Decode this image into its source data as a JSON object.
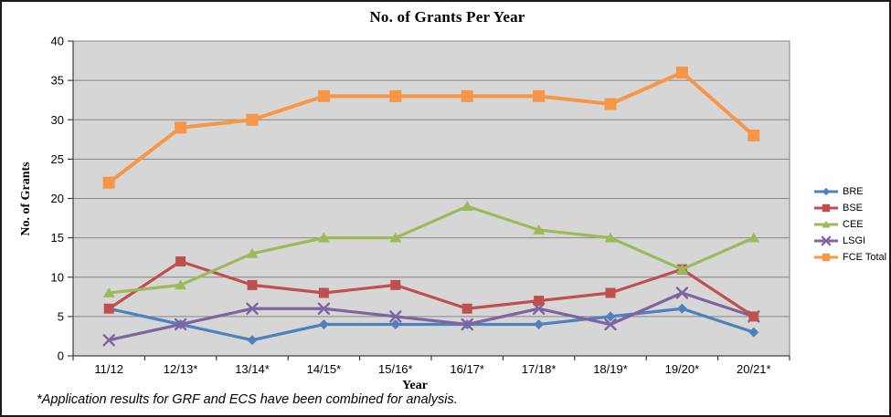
{
  "chart_data": {
    "type": "line",
    "title": "No. of Grants Per Year",
    "xlabel": "Year",
    "ylabel": "No. of Grants",
    "categories": [
      "11/12",
      "12/13*",
      "13/14*",
      "14/15*",
      "15/16*",
      "16/17*",
      "17/18*",
      "18/19*",
      "19/20*",
      "20/21*"
    ],
    "series": [
      {
        "name": "BRE",
        "color": "#4F81BD",
        "marker": "diamond",
        "values": [
          6,
          4,
          2,
          4,
          4,
          4,
          4,
          5,
          6,
          3
        ],
        "line_width": 3.2,
        "marker_size": 5.5
      },
      {
        "name": "BSE",
        "color": "#C0504D",
        "marker": "square",
        "values": [
          6,
          12,
          9,
          8,
          9,
          6,
          7,
          8,
          11,
          5
        ],
        "line_width": 3.2,
        "marker_size": 5.5
      },
      {
        "name": "CEE",
        "color": "#9BBB59",
        "marker": "triangle",
        "values": [
          8,
          9,
          13,
          15,
          15,
          19,
          16,
          15,
          11,
          15
        ],
        "line_width": 3.2,
        "marker_size": 6
      },
      {
        "name": "LSGI",
        "color": "#8064A2",
        "marker": "x",
        "values": [
          2,
          4,
          6,
          6,
          5,
          4,
          6,
          4,
          8,
          5
        ],
        "line_width": 3.2,
        "marker_size": 5.5
      },
      {
        "name": "FCE Total",
        "color": "#F79646",
        "marker": "square",
        "values": [
          22,
          29,
          30,
          33,
          33,
          33,
          33,
          32,
          36,
          28
        ],
        "line_width": 4,
        "marker_size": 6.5
      }
    ],
    "draw_order": [
      0,
      3,
      1,
      2,
      4
    ],
    "ylim": [
      0,
      40
    ],
    "y_ticks": [
      0,
      5,
      10,
      15,
      20,
      25,
      30,
      35,
      40
    ],
    "grid": true,
    "legend_position": "right",
    "plot_bg": "#D6D6D6",
    "grid_color": "#878787",
    "axis_color": "#404040",
    "plot_border_color": "#808080"
  },
  "footnote": {
    "text": "*Application results for GRF and ECS have been combined for analysis."
  }
}
